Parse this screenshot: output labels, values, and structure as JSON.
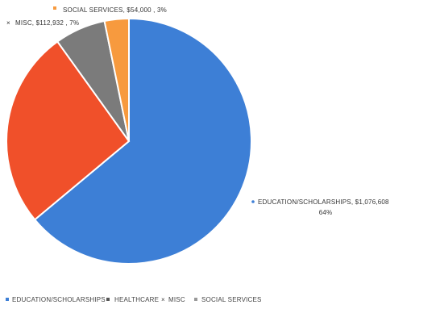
{
  "chart_data": {
    "type": "pie",
    "title": "",
    "slices": [
      {
        "name": "EDUCATION/SCHOLARSHIPS",
        "value": 1076608,
        "percent": 64,
        "color": "#3d7fd6",
        "label_line1": "EDUCATION/SCHOLARSHIPS, $1,076,608",
        "label_line2": "64%"
      },
      {
        "name": "HEALTHCARE",
        "value": 440000,
        "percent": 26,
        "color": "#f0502a",
        "label_line1": "",
        "label_line2": ""
      },
      {
        "name": "MISC",
        "value": 112932,
        "percent": 7,
        "color": "#7b7b7b",
        "label_line1": "MISC, $112,932 , 7%",
        "label_line2": ""
      },
      {
        "name": "SOCIAL SERVICES",
        "value": 54000,
        "percent": 3,
        "color": "#f79a3e",
        "label_line1": "SOCIAL SERVICES, $54,000 , 3%",
        "label_line2": ""
      }
    ],
    "legend": {
      "placement": "bottom-left",
      "entries": [
        {
          "name": "EDUCATION/SCHOLARSHIPS",
          "color": "#3d7fd6"
        },
        {
          "name": "HEALTHCARE",
          "color": "#555555"
        },
        {
          "name": "MISC",
          "color": "#888888"
        },
        {
          "name": "SOCIAL SERVICES",
          "color": "#999999"
        }
      ]
    }
  }
}
